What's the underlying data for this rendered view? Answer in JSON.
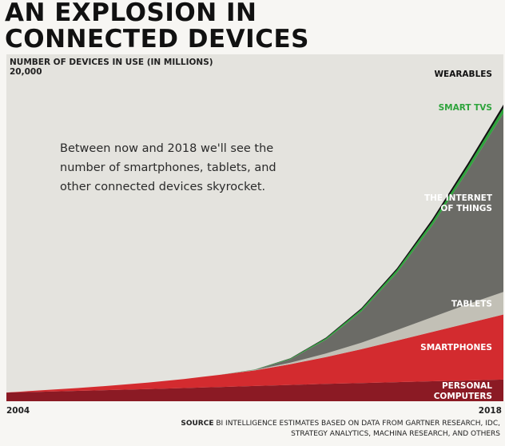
{
  "title_lines": [
    "AN EXPLOSION IN",
    "CONNECTED DEVICES"
  ],
  "annotation": "Between now and 2018 we'll see the number of smartphones, tablets, and other connected devices skyrocket.",
  "source": {
    "label": "SOURCE",
    "text": "BI INTELLIGENCE ESTIMATES BASED ON DATA FROM GARTNER RESEARCH, IDC, STRATEGY ANALYTICS, MACHINA RESEARCH, AND OTHERS"
  },
  "chart_data": {
    "type": "area",
    "stacked": true,
    "ylabel": "NUMBER OF DEVICES IN USE (IN MILLIONS)",
    "ytick_top": "20,000",
    "ylim": [
      0,
      20000
    ],
    "xlim": [
      2004,
      2018
    ],
    "x_tick_labels": [
      "2004",
      "2018"
    ],
    "x": [
      2004,
      2005,
      2006,
      2007,
      2008,
      2009,
      2010,
      2011,
      2012,
      2013,
      2014,
      2015,
      2016,
      2017,
      2018
    ],
    "series": [
      {
        "name": "PERSONAL COMPUTERS",
        "color": "#8b1a24",
        "label_color": "#ffffff",
        "values": [
          500,
          550,
          600,
          650,
          700,
          760,
          820,
          880,
          940,
          1000,
          1050,
          1100,
          1150,
          1200,
          1250
        ]
      },
      {
        "name": "SMARTPHONES",
        "color": "#d32b2f",
        "label_color": "#ffffff",
        "values": [
          0,
          80,
          160,
          260,
          380,
          520,
          700,
          900,
          1200,
          1550,
          1950,
          2400,
          2850,
          3300,
          3750
        ]
      },
      {
        "name": "TABLETS",
        "color": "#c2c0b6",
        "label_color": "#ffffff",
        "values": [
          0,
          0,
          0,
          0,
          0,
          0,
          0,
          20,
          80,
          200,
          380,
          600,
          850,
          1100,
          1300
        ]
      },
      {
        "name": "THE INTERNET OF THINGS",
        "color": "#6b6b66",
        "label_color": "#ffffff",
        "values": [
          0,
          0,
          0,
          0,
          0,
          0,
          0,
          20,
          200,
          800,
          1800,
          3300,
          5300,
          7700,
          10300
        ]
      },
      {
        "name": "SMART TVS",
        "color": "#2ea43c",
        "label_color": "#2ea43c",
        "values": [
          0,
          0,
          0,
          0,
          0,
          0,
          0,
          10,
          40,
          80,
          120,
          160,
          200,
          250,
          300
        ]
      },
      {
        "name": "WEARABLES",
        "color": "#111111",
        "label_color": "#111111",
        "values": [
          0,
          0,
          0,
          0,
          0,
          0,
          0,
          5,
          20,
          40,
          70,
          100,
          150,
          180,
          200
        ]
      }
    ]
  }
}
